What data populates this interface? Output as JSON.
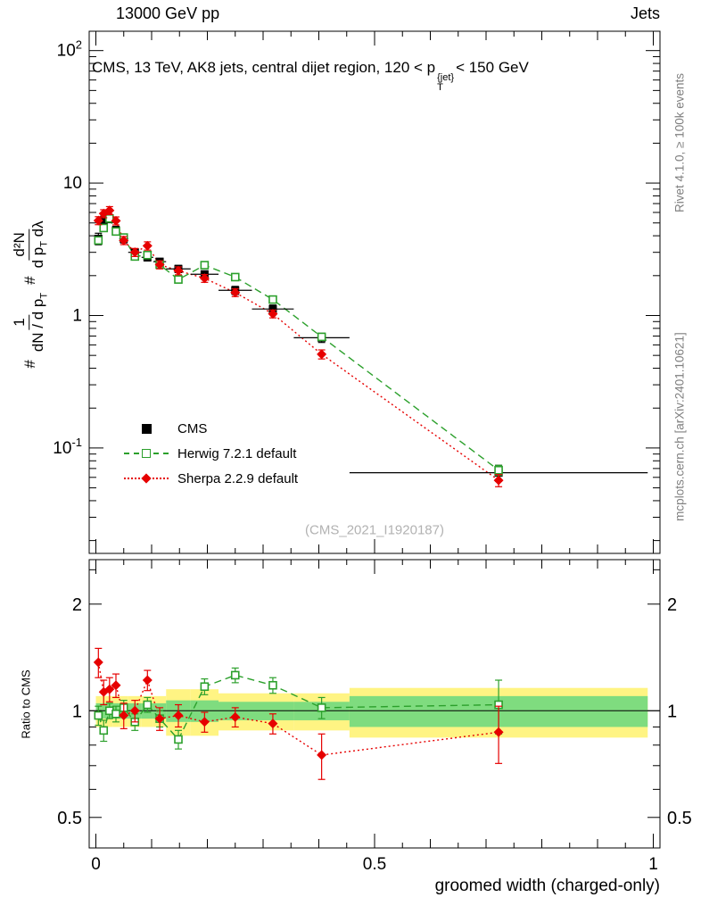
{
  "header": {
    "left": "13000 GeV pp",
    "right": "Jets"
  },
  "title": {
    "a": "CMS, 13 TeV, AK8 jets, central dijet region, 120 < p",
    "sup": "{jet}",
    "sub": "T",
    "b": "< 150 GeV"
  },
  "ylabel": {
    "hash1": "#",
    "hash2": "#",
    "f1num": "1",
    "f1den": "dN / d p",
    "f1densub": "T",
    "f2num": "d²N",
    "f2den_a": "d p",
    "f2densub": "T",
    "f2den_b": " dλ"
  },
  "side": {
    "rivet": "Rivet 4.1.0, ≥ 100k events",
    "mcplots": "mcplots.cern.ch [arXiv:2401.10621]"
  },
  "watermark": "(CMS_2021_I1920187)",
  "ratio_ylabel": "Ratio to CMS",
  "chart_data": {
    "type": "scatter",
    "title": "CMS, 13 TeV, AK8 jets, central dijet region, 120 < pT{jet} < 150 GeV",
    "xlabel": "groomed width (charged-only)",
    "ylabel": "# 1/(dN/dpT) # d²N/(dpT dλ)",
    "xlim": [
      0,
      1
    ],
    "ylog_range": [
      0.016,
      140
    ],
    "ratio_ylog_range": [
      0.41,
      2.67
    ],
    "x_ticks": [
      {
        "v": 0,
        "label": "0"
      },
      {
        "v": 0.5,
        "label": "0.5"
      },
      {
        "v": 1,
        "label": "1"
      }
    ],
    "y_ticks": [
      {
        "v": 100,
        "base": "10",
        "sup": "2"
      },
      {
        "v": 10,
        "base": "10"
      },
      {
        "v": 1,
        "base": "1"
      },
      {
        "v": 0.1,
        "base": "10",
        "sup": "-1"
      }
    ],
    "ratio_ticks": [
      {
        "v": 2,
        "label": "2"
      },
      {
        "v": 1,
        "label": "1"
      },
      {
        "v": 0.5,
        "label": "0.5"
      }
    ],
    "ratio_minor_ticks": [
      0.6,
      0.7,
      0.8,
      0.9,
      2.5
    ],
    "bin_edges": [
      0,
      0.009,
      0.019,
      0.03,
      0.042,
      0.058,
      0.082,
      0.103,
      0.126,
      0.17,
      0.22,
      0.28,
      0.355,
      0.455,
      0.99
    ],
    "x": [
      0.0045,
      0.014,
      0.0245,
      0.036,
      0.05,
      0.07,
      0.0925,
      0.1145,
      0.148,
      0.195,
      0.25,
      0.3175,
      0.405,
      0.7225
    ],
    "series": [
      {
        "name": "CMS",
        "color": "#000000",
        "marker": "filled-square",
        "values": [
          3.8,
          5.2,
          5.4,
          4.4,
          3.8,
          3.0,
          2.75,
          2.55,
          2.25,
          2.05,
          1.55,
          1.12,
          0.68,
          0.065
        ],
        "yerr": [
          0.38,
          0.42,
          0.38,
          0.31,
          0.27,
          0.18,
          0.17,
          0.15,
          0.14,
          0.12,
          0.11,
          0.08,
          0.054,
          0.009
        ]
      },
      {
        "name": "Herwig 7.2.1 default",
        "color": "#2ca02c",
        "marker": "open-square",
        "line": "dashed",
        "values": [
          3.69,
          4.58,
          5.4,
          4.31,
          3.88,
          2.79,
          2.86,
          2.42,
          1.87,
          2.4,
          1.95,
          1.32,
          0.69,
          0.068
        ],
        "yerr": [
          0.18,
          0.23,
          0.27,
          0.22,
          0.19,
          0.14,
          0.14,
          0.12,
          0.09,
          0.12,
          0.1,
          0.07,
          0.035,
          0.006
        ],
        "ratio": [
          0.97,
          0.88,
          1.0,
          0.98,
          1.02,
          0.93,
          1.04,
          0.95,
          0.83,
          1.17,
          1.26,
          1.18,
          1.02,
          1.04
        ],
        "ratio_err": [
          0.06,
          0.06,
          0.05,
          0.05,
          0.05,
          0.05,
          0.05,
          0.05,
          0.05,
          0.06,
          0.06,
          0.06,
          0.07,
          0.18
        ]
      },
      {
        "name": "Sherpa 2.2.9 default",
        "color": "#e60000",
        "marker": "filled-diamond",
        "line": "dotted",
        "values": [
          5.21,
          5.88,
          6.21,
          5.19,
          3.69,
          3.0,
          3.36,
          2.42,
          2.18,
          1.91,
          1.49,
          1.03,
          0.51,
          0.057
        ],
        "yerr": [
          0.36,
          0.41,
          0.43,
          0.36,
          0.26,
          0.21,
          0.24,
          0.17,
          0.15,
          0.13,
          0.1,
          0.07,
          0.04,
          0.006
        ],
        "ratio": [
          1.37,
          1.13,
          1.15,
          1.18,
          0.97,
          1.0,
          1.22,
          0.95,
          0.97,
          0.93,
          0.96,
          0.92,
          0.75,
          0.87
        ],
        "ratio_err": [
          0.13,
          0.09,
          0.09,
          0.09,
          0.08,
          0.07,
          0.08,
          0.07,
          0.07,
          0.06,
          0.06,
          0.06,
          0.11,
          0.16
        ]
      }
    ],
    "bands": {
      "colors": {
        "outer": "#fff483",
        "inner": "#7fdc7f"
      },
      "outer_lo": [
        0.9,
        0.9,
        0.9,
        0.9,
        0.9,
        0.9,
        0.9,
        0.9,
        0.85,
        0.85,
        0.88,
        0.88,
        0.88,
        0.84
      ],
      "outer_hi": [
        1.1,
        1.1,
        1.1,
        1.1,
        1.1,
        1.1,
        1.1,
        1.1,
        1.15,
        1.15,
        1.12,
        1.12,
        1.12,
        1.16
      ],
      "inner_lo": [
        0.95,
        0.95,
        0.95,
        0.95,
        0.95,
        0.95,
        0.95,
        0.95,
        0.93,
        0.93,
        0.94,
        0.94,
        0.94,
        0.9
      ],
      "inner_hi": [
        1.05,
        1.05,
        1.05,
        1.05,
        1.05,
        1.05,
        1.05,
        1.05,
        1.07,
        1.07,
        1.06,
        1.06,
        1.06,
        1.1
      ]
    }
  }
}
